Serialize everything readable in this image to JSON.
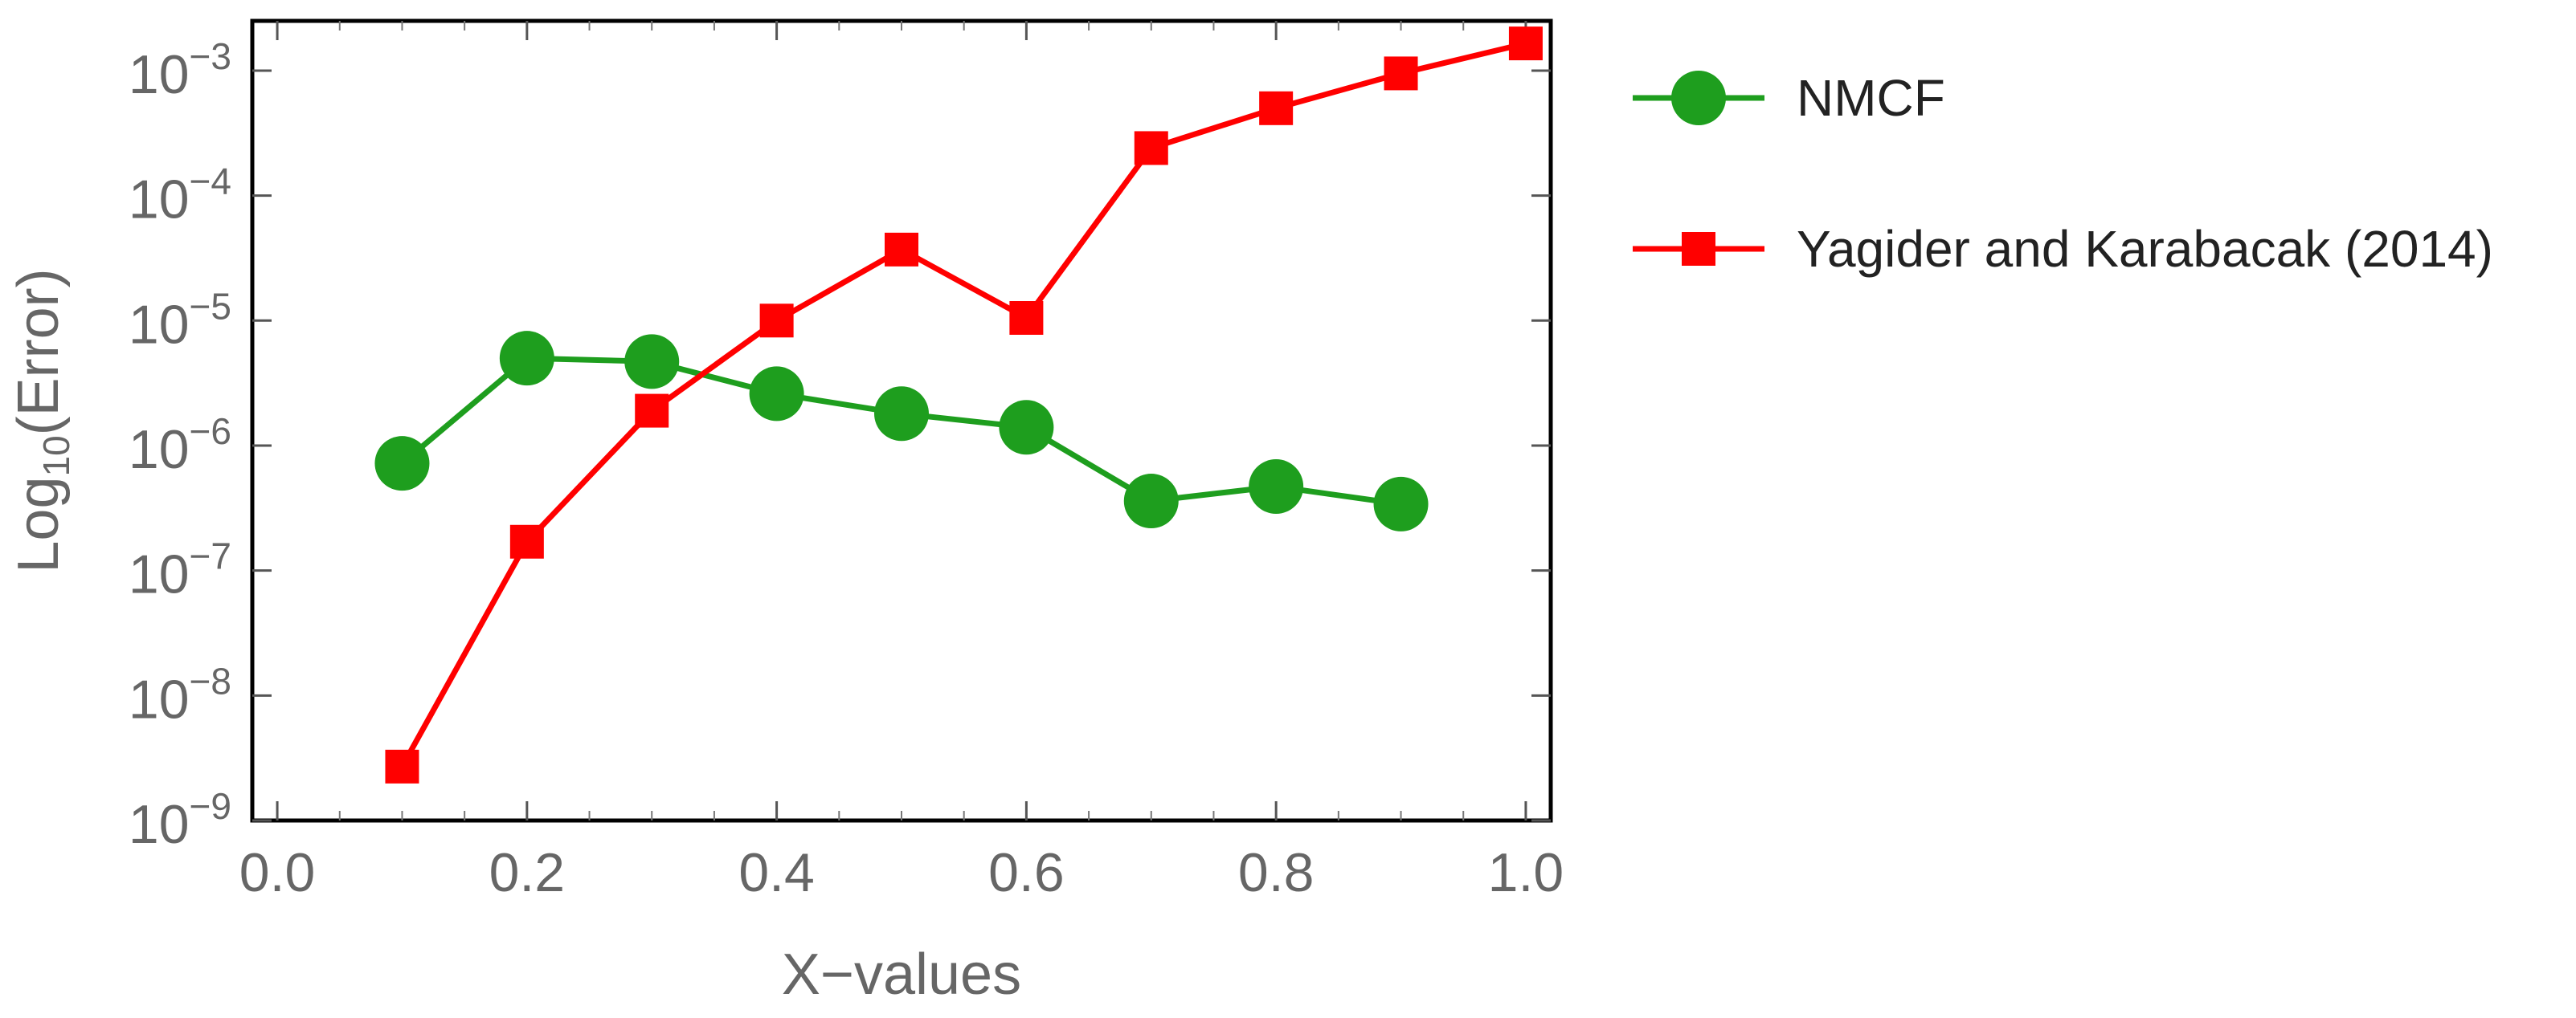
{
  "chart_data": {
    "type": "line",
    "xlabel": "X−values",
    "ylabel": "Log10(Error)",
    "ylabel_parts": {
      "main": "Log",
      "sub": "10",
      "rest": "(Error)"
    },
    "y_scale": "log",
    "xlim": [
      -0.02,
      1.02
    ],
    "ylim": [
      1e-09,
      0.0025
    ],
    "x_ticks": [
      {
        "value": 0.0,
        "label": "0.0"
      },
      {
        "value": 0.2,
        "label": "0.2"
      },
      {
        "value": 0.4,
        "label": "0.4"
      },
      {
        "value": 0.6,
        "label": "0.6"
      },
      {
        "value": 0.8,
        "label": "0.8"
      },
      {
        "value": 1.0,
        "label": "1.0"
      }
    ],
    "y_ticks": [
      {
        "exp": -9,
        "base": "10",
        "exponent": "−9"
      },
      {
        "exp": -8,
        "base": "10",
        "exponent": "−8"
      },
      {
        "exp": -7,
        "base": "10",
        "exponent": "−7"
      },
      {
        "exp": -6,
        "base": "10",
        "exponent": "−6"
      },
      {
        "exp": -5,
        "base": "10",
        "exponent": "−5"
      },
      {
        "exp": -4,
        "base": "10",
        "exponent": "−4"
      },
      {
        "exp": -3,
        "base": "10",
        "exponent": "−3"
      }
    ],
    "legend_position": "right",
    "series": [
      {
        "name": "NMCF",
        "color": "#1e9e1e",
        "marker": "circle",
        "x": [
          0.1,
          0.2,
          0.3,
          0.4,
          0.5,
          0.6,
          0.7,
          0.8,
          0.9
        ],
        "y": [
          7.2e-07,
          5e-06,
          4.7e-06,
          2.6e-06,
          1.8e-06,
          1.4e-06,
          3.6e-07,
          4.7e-07,
          3.4e-07
        ]
      },
      {
        "name": "Yagider and Karabacak (2014)",
        "color": "#ff0000",
        "marker": "square",
        "x": [
          0.1,
          0.2,
          0.3,
          0.4,
          0.5,
          0.6,
          0.7,
          0.8,
          0.9,
          1.0
        ],
        "y": [
          2.7e-09,
          1.7e-07,
          1.9e-06,
          1e-05,
          3.7e-05,
          1.05e-05,
          0.00024,
          0.0005,
          0.00095,
          0.00165
        ]
      }
    ]
  }
}
